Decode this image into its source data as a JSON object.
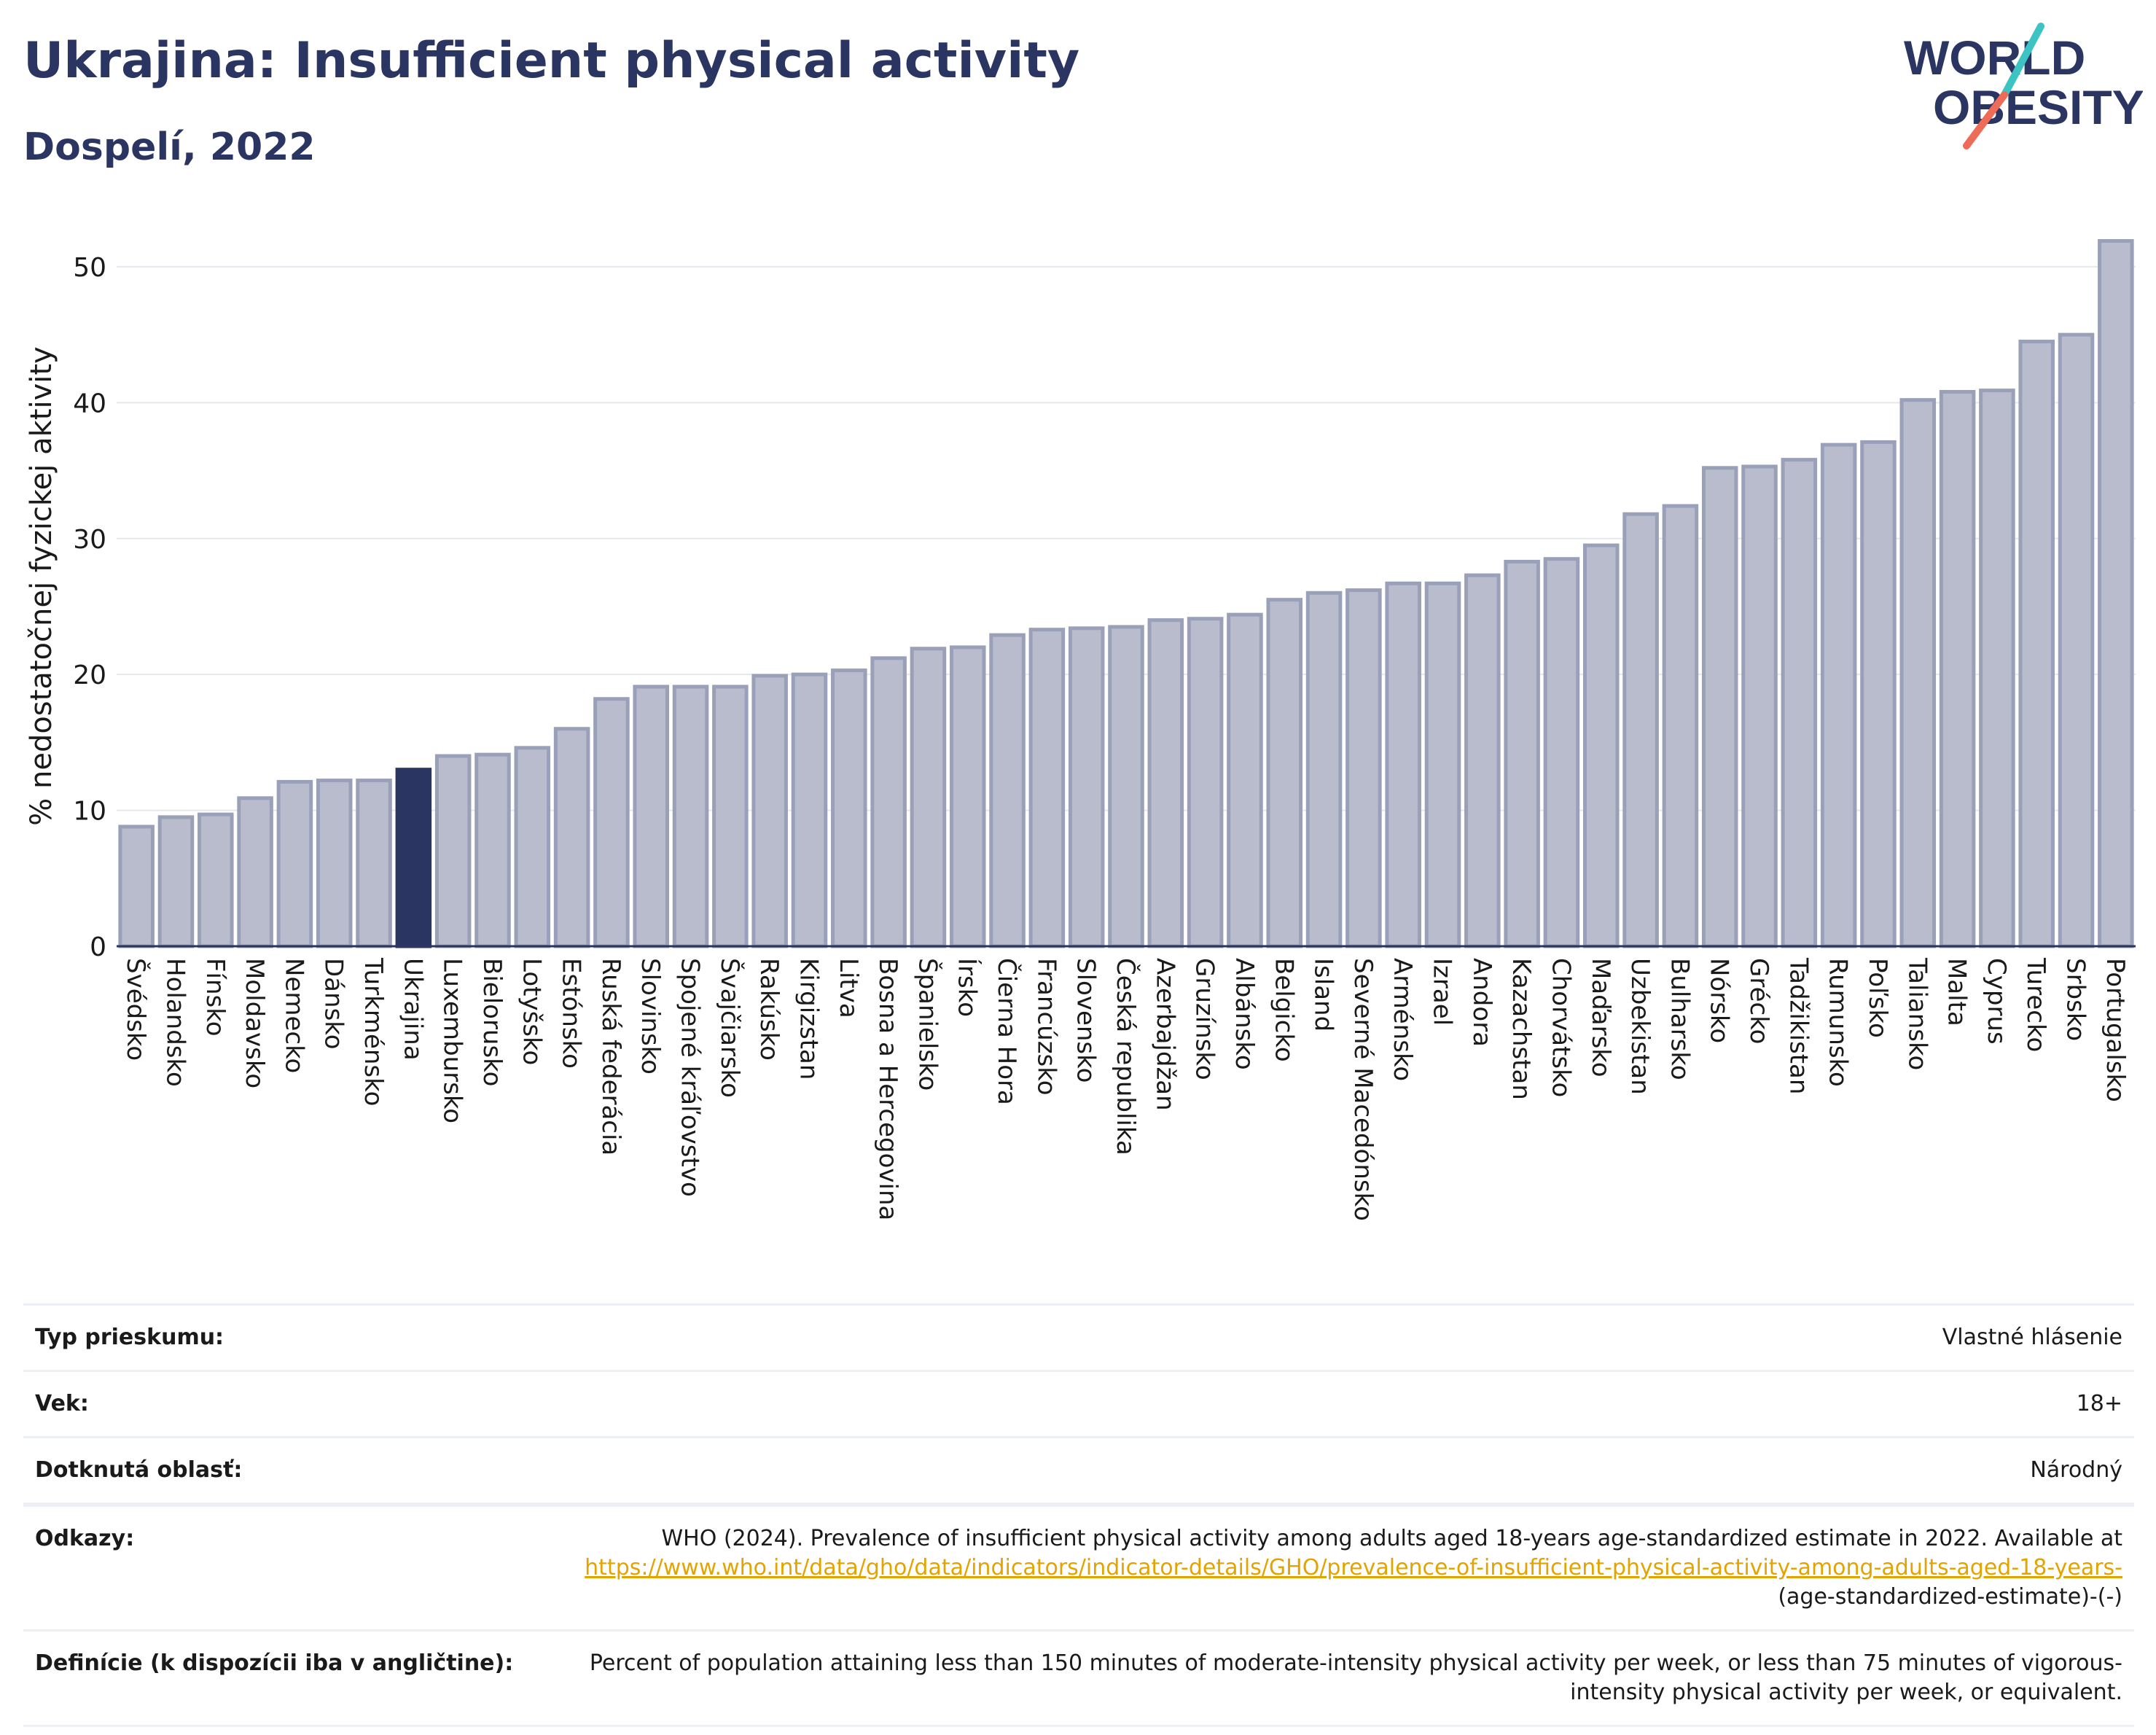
{
  "header": {
    "title": "Ukrajina: Insufficient physical activity",
    "subtitle": "Dospelí, 2022"
  },
  "logo": {
    "line1": "WORLD",
    "line2": "OBESITY"
  },
  "colors": {
    "bar": "#b8bccd",
    "bar_edge": "#9aa0b8",
    "highlight": "#2b3561",
    "title": "#2b3561",
    "link": "#e3a400"
  },
  "chart_data": {
    "type": "bar",
    "ylabel": "% nedostatočnej fyzickej aktivity",
    "ylim": [
      0,
      53
    ],
    "yticks": [
      0,
      10,
      20,
      30,
      40,
      50
    ],
    "grid": true,
    "highlight": "Ukrajina",
    "categories": [
      "Švédsko",
      "Holandsko",
      "Fínsko",
      "Moldavsko",
      "Nemecko",
      "Dánsko",
      "Turkménsko",
      "Ukrajina",
      "Luxembursko",
      "Bielorusko",
      "Lotyšsko",
      "Estónsko",
      "Ruská federácia",
      "Slovinsko",
      "Spojené kráľovstvo",
      "Švajčiarsko",
      "Rakúsko",
      "Kirgizstan",
      "Litva",
      "Bosna a Hercegovina",
      "Španielsko",
      "Írsko",
      "Čierna Hora",
      "Francúzsko",
      "Slovensko",
      "Česká republika",
      "Azerbajdžan",
      "Gruzínsko",
      "Albánsko",
      "Belgicko",
      "Island",
      "Severné Macedónsko",
      "Arménsko",
      "Izrael",
      "Andora",
      "Kazachstan",
      "Chorvátsko",
      "Maďarsko",
      "Uzbekistan",
      "Bulharsko",
      "Nórsko",
      "Grécko",
      "Tadžikistan",
      "Rumunsko",
      "Poľsko",
      "Taliansko",
      "Malta",
      "Cyprus",
      "Turecko",
      "Srbsko",
      "Portugalsko"
    ],
    "values": [
      8.8,
      9.5,
      9.7,
      10.9,
      12.1,
      12.2,
      12.2,
      13.0,
      14.0,
      14.1,
      14.6,
      16.0,
      18.2,
      19.1,
      19.1,
      19.1,
      19.9,
      20.0,
      20.3,
      21.2,
      21.9,
      22.0,
      22.9,
      23.3,
      23.4,
      23.5,
      24.0,
      24.1,
      24.4,
      25.5,
      26.0,
      26.2,
      26.7,
      26.7,
      27.3,
      28.3,
      28.5,
      29.5,
      31.8,
      32.4,
      35.2,
      35.3,
      35.8,
      36.9,
      37.1,
      40.2,
      40.8,
      40.9,
      44.5,
      45.0,
      51.9
    ]
  },
  "meta": {
    "rows": [
      {
        "label": "Typ prieskumu:",
        "value": "Vlastné hlásenie"
      },
      {
        "label": "Vek:",
        "value": "18+"
      },
      {
        "label": "Dotknutá oblasť:",
        "value": "Národný"
      }
    ],
    "references": {
      "label": "Odkazy:",
      "text": "WHO (2024). Prevalence of insufficient physical activity among adults aged 18-years age-standardized estimate in 2022. Available at",
      "link": "https://www.who.int/data/gho/data/indicators/indicator-details/GHO/prevalence-of-insufficient-physical-activity-among-adults-aged-18-years-",
      "suffix": "(age-standardized-estimate)-(-)"
    },
    "definition": {
      "label": "Definície (k dispozícii iba v angličtine):",
      "value": "Percent of population attaining less than 150 minutes of moderate-intensity physical activity per week, or less than 75 minutes of vigorous-intensity physical activity per week, or equivalent."
    }
  }
}
